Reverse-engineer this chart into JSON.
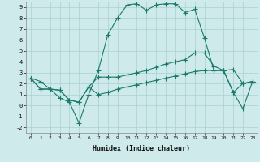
{
  "xlabel": "Humidex (Indice chaleur)",
  "background_color": "#ceeaea",
  "line_color": "#1a7a6a",
  "grid_color": "#aacfcf",
  "xlim": [
    -0.5,
    23.5
  ],
  "ylim": [
    -2.5,
    9.5
  ],
  "xticks": [
    0,
    1,
    2,
    3,
    4,
    5,
    6,
    7,
    8,
    9,
    10,
    11,
    12,
    13,
    14,
    15,
    16,
    17,
    18,
    19,
    20,
    21,
    22,
    23
  ],
  "yticks": [
    -2,
    -1,
    0,
    1,
    2,
    3,
    4,
    5,
    6,
    7,
    8,
    9
  ],
  "line1_x": [
    0,
    1,
    2,
    3,
    4,
    5,
    6,
    7,
    8,
    9,
    10,
    11,
    12,
    13,
    14,
    15,
    16,
    17,
    18,
    19,
    20,
    21,
    22,
    23
  ],
  "line1_y": [
    2.5,
    2.2,
    1.5,
    0.7,
    0.3,
    -1.6,
    1.0,
    3.2,
    6.5,
    8.0,
    9.2,
    9.3,
    8.7,
    9.2,
    9.3,
    9.3,
    8.5,
    8.8,
    6.2,
    3.2,
    3.2,
    1.2,
    -0.3,
    2.2
  ],
  "line2_x": [
    0,
    1,
    2,
    3,
    4,
    5,
    6,
    7,
    8,
    9,
    10,
    11,
    12,
    13,
    14,
    15,
    16,
    17,
    18,
    19,
    20,
    21,
    22,
    23
  ],
  "line2_y": [
    2.5,
    1.5,
    1.5,
    1.4,
    0.5,
    0.3,
    1.7,
    2.6,
    2.6,
    2.6,
    2.8,
    3.0,
    3.2,
    3.5,
    3.8,
    4.0,
    4.2,
    4.8,
    4.8,
    3.6,
    3.2,
    3.3,
    2.0,
    2.2
  ],
  "line3_x": [
    0,
    1,
    2,
    3,
    4,
    5,
    6,
    7,
    8,
    9,
    10,
    11,
    12,
    13,
    14,
    15,
    16,
    17,
    18,
    19,
    20,
    21,
    22,
    23
  ],
  "line3_y": [
    2.5,
    1.5,
    1.5,
    1.4,
    0.5,
    0.3,
    1.7,
    1.0,
    1.2,
    1.5,
    1.7,
    1.9,
    2.1,
    2.3,
    2.5,
    2.7,
    2.9,
    3.1,
    3.2,
    3.2,
    3.2,
    1.2,
    2.0,
    2.2
  ]
}
